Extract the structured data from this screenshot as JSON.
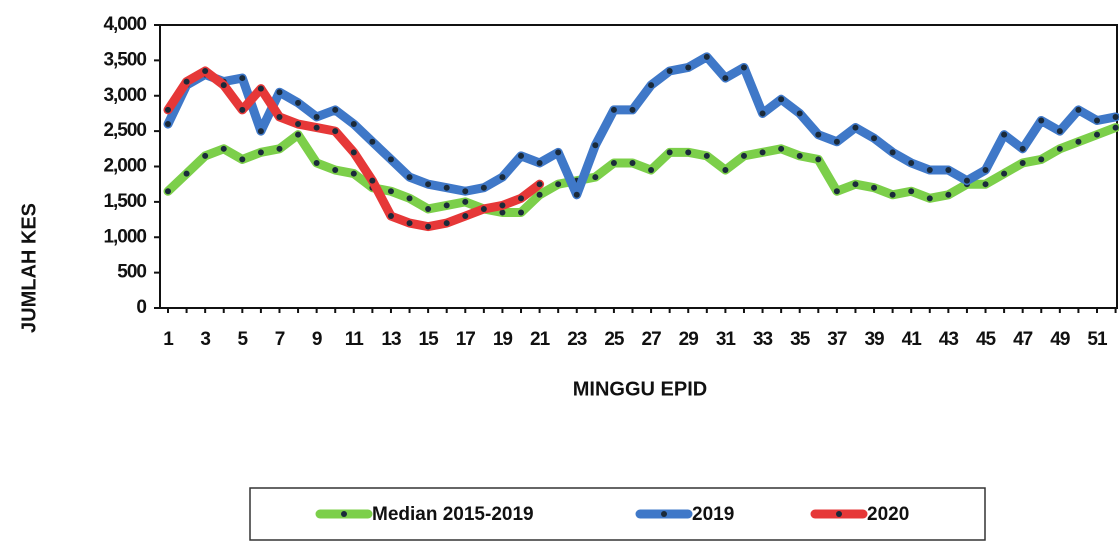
{
  "chart_data": {
    "type": "line",
    "x_label": "MINGGU EPID",
    "y_label": "JUMLAH  KES",
    "categories": [
      1,
      null,
      3,
      null,
      5,
      null,
      7,
      null,
      9,
      null,
      11,
      null,
      13,
      null,
      15,
      null,
      17,
      null,
      19,
      null,
      21,
      null,
      23,
      null,
      25,
      null,
      27,
      null,
      29,
      null,
      31,
      null,
      33,
      null,
      35,
      null,
      37,
      null,
      39,
      null,
      41,
      null,
      43,
      null,
      45,
      null,
      47,
      null,
      49,
      null,
      51,
      null
    ],
    "ylim": [
      0,
      4000
    ],
    "yticks": [
      0,
      500,
      {
        "value": 1000,
        "label": "1,000"
      },
      {
        "value": 1500,
        "label": "1,500"
      },
      {
        "value": 2000,
        "label": "2,000"
      },
      {
        "value": 2500,
        "label": "2,500"
      },
      {
        "value": 3000,
        "label": "3,000"
      },
      {
        "value": 3500,
        "label": "3,500"
      },
      {
        "value": 4000,
        "label": "4,000"
      }
    ],
    "grid": false,
    "legend": "bottom",
    "series": [
      {
        "name": "Median 2015-2019",
        "color": "#7ccf4a",
        "values": [
          1650,
          1900,
          2150,
          2250,
          2100,
          2200,
          2250,
          2450,
          2050,
          1950,
          1900,
          1700,
          1650,
          1550,
          1400,
          1450,
          1500,
          1400,
          1350,
          1350,
          1600,
          1750,
          1800,
          1850,
          2050,
          2050,
          1950,
          2200,
          2200,
          2150,
          1950,
          2150,
          2200,
          2250,
          2150,
          2100,
          1650,
          1750,
          1700,
          1600,
          1650,
          1550,
          1600,
          1750,
          1750,
          1900,
          2050,
          2100,
          2250,
          2350,
          2450,
          2550
        ]
      },
      {
        "name": "2019",
        "color": "#3f78c8",
        "values": [
          2600,
          3150,
          3300,
          3200,
          3250,
          2500,
          3050,
          2900,
          2700,
          2800,
          2600,
          2350,
          2100,
          1850,
          1750,
          1700,
          1650,
          1700,
          1850,
          2150,
          2050,
          2200,
          1600,
          2300,
          2800,
          2800,
          3150,
          3350,
          3400,
          3550,
          3250,
          3400,
          2750,
          2950,
          2750,
          2450,
          2350,
          2550,
          2400,
          2200,
          2050,
          1950,
          1950,
          1800,
          1950,
          2450,
          2250,
          2650,
          2500,
          2800,
          2650,
          2700
        ]
      },
      {
        "name": "2020",
        "color": "#e63838",
        "values": [
          2800,
          3200,
          3350,
          3150,
          2800,
          3100,
          2700,
          2600,
          2550,
          2500,
          2200,
          1800,
          1300,
          1200,
          1150,
          1200,
          1300,
          1400,
          1450,
          1550,
          1750,
          null,
          null,
          null,
          null,
          null,
          null,
          null,
          null,
          null,
          null,
          null,
          null,
          null,
          null,
          null,
          null,
          null,
          null,
          null,
          null,
          null,
          null,
          null,
          null,
          null,
          null,
          null,
          null,
          null,
          null,
          null
        ]
      }
    ]
  }
}
